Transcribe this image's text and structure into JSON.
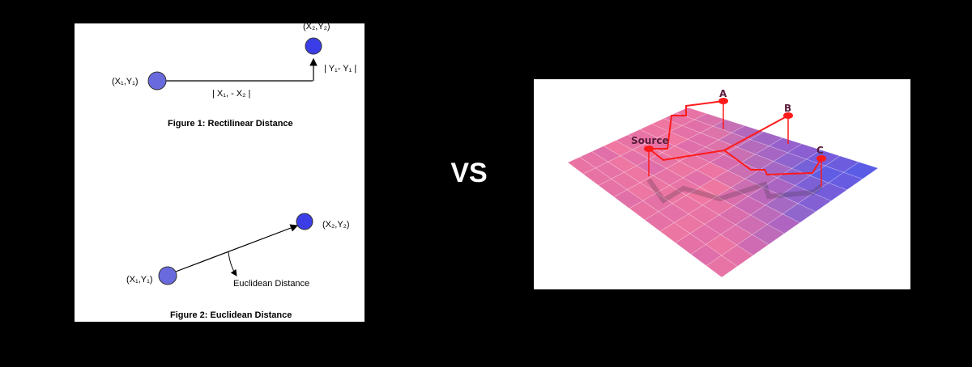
{
  "left_panel": {
    "figure1": {
      "point1_label": "(X₁,Y₁)",
      "point2_label": "(X₂,Y₂)",
      "horizontal_label": "| X₁, - X₂ |",
      "vertical_label": "| Y₁- Y₁ |",
      "caption": "Figure 1: Rectilinear Distance"
    },
    "figure2": {
      "point1_label": "(X₁,Y₁)",
      "point2_label": "(X₂,Y₂)",
      "line_label": "Euclidean Distance",
      "caption": "Figure 2: Euclidean Distance"
    },
    "colors": {
      "point_fill": "#3b3ee6",
      "point_fill_light": "#6a6adf"
    }
  },
  "vs_text": "VS",
  "right_panel": {
    "labels": {
      "source": "Source",
      "a": "A",
      "b": "B",
      "c": "C"
    },
    "colors": {
      "path": "#ff1a1a",
      "grid_pink": "#f07aa0",
      "grid_blue": "#5a5ce6"
    }
  }
}
